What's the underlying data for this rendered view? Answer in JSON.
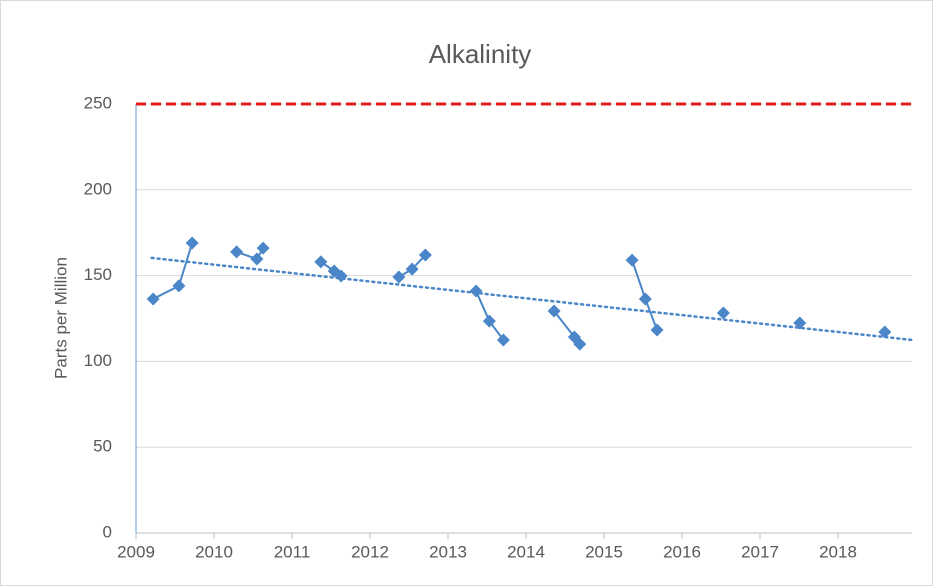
{
  "chart_data": {
    "type": "line",
    "title": "Alkalinity",
    "y_label": "Parts per Million",
    "x": [
      2009.22,
      2009.55,
      2009.72,
      null,
      2010.29,
      2010.55,
      2010.63,
      null,
      2011.37,
      2011.54,
      2011.63,
      null,
      2012.37,
      2012.54,
      2012.71,
      null,
      2013.36,
      2013.53,
      2013.71,
      null,
      2014.36,
      2014.62,
      2014.69,
      null,
      2015.36,
      2015.53,
      2015.68,
      null,
      2016.53,
      null,
      2017.51,
      null,
      2018.6
    ],
    "series": [
      {
        "color": "#4a86c8",
        "values": [
          136.4,
          144,
          169,
          null,
          163.8,
          159.7,
          166,
          null,
          158,
          152.7,
          149.8,
          null,
          149.2,
          153.8,
          162,
          null,
          141,
          123.5,
          112.5,
          null,
          129.4,
          114.2,
          110.1,
          null,
          159,
          136.4,
          118.3,
          null,
          128.2,
          null,
          122.4,
          null,
          117.1
        ]
      }
    ],
    "trendline": {
      "x": [
        2009.2,
        2018.95
      ],
      "values": [
        160.3,
        112.5
      ],
      "color": "#4a86c8"
    },
    "reference_line": {
      "value": 250,
      "color": "#e21b1b"
    },
    "xlim": [
      2009,
      2019
    ],
    "xticks": [
      2009,
      2010,
      2011,
      2012,
      2013,
      2014,
      2015,
      2016,
      2017,
      2018
    ],
    "ylim": [
      0,
      250
    ],
    "yticks": [
      0,
      50,
      100,
      150,
      200,
      250
    ],
    "grid": true
  }
}
